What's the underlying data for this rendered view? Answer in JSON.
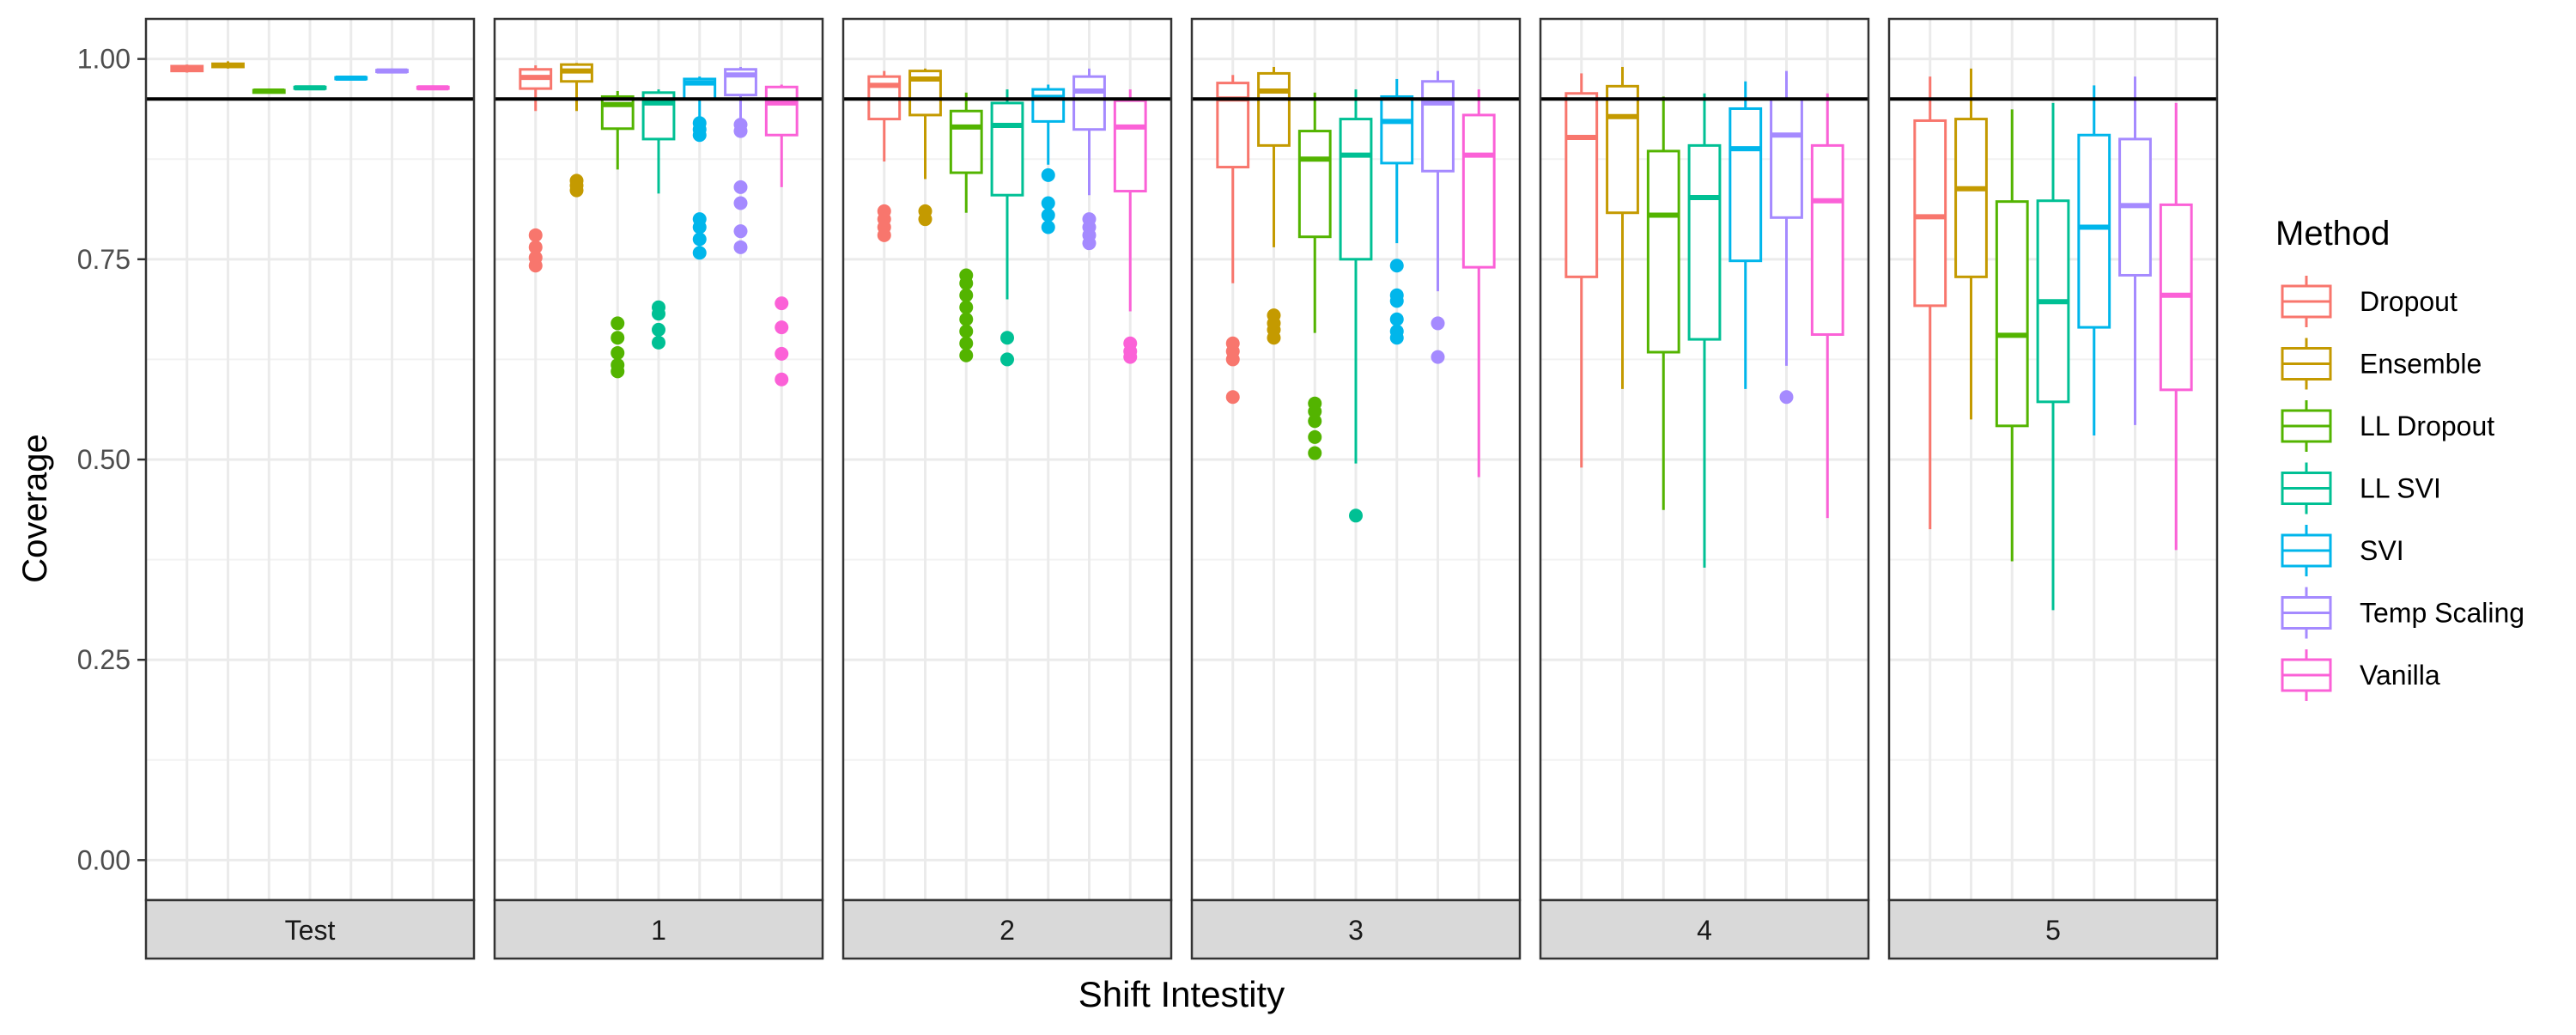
{
  "chart_data": {
    "type": "boxplot",
    "title": "",
    "xlabel": "Shift Intestity",
    "ylabel": "Coverage",
    "ylim": [
      -0.05,
      1.05
    ],
    "yticks": [
      0.0,
      0.25,
      0.5,
      0.75,
      1.0
    ],
    "ytick_labels": [
      "0.00",
      "0.25",
      "0.50",
      "0.75",
      "1.00"
    ],
    "reference_line": 0.95,
    "grid": true,
    "legend_position": "right",
    "legend_title": "Method",
    "facets": [
      "Test",
      "1",
      "2",
      "3",
      "4",
      "5"
    ],
    "series": [
      {
        "name": "Dropout",
        "color": "#F8766D"
      },
      {
        "name": "Ensemble",
        "color": "#C49A00"
      },
      {
        "name": "LL Dropout",
        "color": "#53B400"
      },
      {
        "name": "LL SVI",
        "color": "#00C094"
      },
      {
        "name": "SVI",
        "color": "#00B6EB"
      },
      {
        "name": "Temp Scaling",
        "color": "#A58AFF"
      },
      {
        "name": "Vanilla",
        "color": "#FB61D7"
      }
    ],
    "boxes": [
      [
        {
          "min": 0.983,
          "q1": 0.985,
          "median": 0.988,
          "q3": 0.991,
          "max": 0.993,
          "outliers": []
        },
        {
          "min": 0.988,
          "q1": 0.99,
          "median": 0.992,
          "q3": 0.994,
          "max": 0.997,
          "outliers": []
        },
        {
          "min": 0.957,
          "q1": 0.958,
          "median": 0.96,
          "q3": 0.961,
          "max": 0.962,
          "outliers": []
        },
        {
          "min": 0.962,
          "q1": 0.963,
          "median": 0.964,
          "q3": 0.965,
          "max": 0.966,
          "outliers": []
        },
        {
          "min": 0.973,
          "q1": 0.975,
          "median": 0.976,
          "q3": 0.977,
          "max": 0.979,
          "outliers": []
        },
        {
          "min": 0.982,
          "q1": 0.984,
          "median": 0.985,
          "q3": 0.986,
          "max": 0.988,
          "outliers": []
        },
        {
          "min": 0.962,
          "q1": 0.963,
          "median": 0.964,
          "q3": 0.965,
          "max": 0.967,
          "outliers": []
        }
      ],
      [
        {
          "min": 0.935,
          "q1": 0.963,
          "median": 0.977,
          "q3": 0.987,
          "max": 0.992,
          "outliers": [
            0.78,
            0.765,
            0.752,
            0.742
          ]
        },
        {
          "min": 0.935,
          "q1": 0.972,
          "median": 0.985,
          "q3": 0.993,
          "max": 0.995,
          "outliers": [
            0.848,
            0.842,
            0.836
          ]
        },
        {
          "min": 0.862,
          "q1": 0.913,
          "median": 0.943,
          "q3": 0.953,
          "max": 0.96,
          "outliers": [
            0.67,
            0.652,
            0.633,
            0.618,
            0.61
          ]
        },
        {
          "min": 0.832,
          "q1": 0.9,
          "median": 0.945,
          "q3": 0.958,
          "max": 0.962,
          "outliers": [
            0.69,
            0.682,
            0.662,
            0.646
          ]
        },
        {
          "min": 0.92,
          "q1": 0.95,
          "median": 0.97,
          "q3": 0.975,
          "max": 0.978,
          "outliers": [
            0.92,
            0.912,
            0.905,
            0.8,
            0.79,
            0.775,
            0.758
          ]
        },
        {
          "min": 0.92,
          "q1": 0.955,
          "median": 0.98,
          "q3": 0.987,
          "max": 0.99,
          "outliers": [
            0.918,
            0.91,
            0.84,
            0.82,
            0.785,
            0.765
          ]
        },
        {
          "min": 0.84,
          "q1": 0.905,
          "median": 0.945,
          "q3": 0.965,
          "max": 0.968,
          "outliers": [
            0.695,
            0.665,
            0.632,
            0.6
          ]
        }
      ],
      [
        {
          "min": 0.872,
          "q1": 0.925,
          "median": 0.967,
          "q3": 0.978,
          "max": 0.985,
          "outliers": [
            0.81,
            0.8,
            0.79,
            0.78
          ]
        },
        {
          "min": 0.85,
          "q1": 0.93,
          "median": 0.975,
          "q3": 0.985,
          "max": 0.988,
          "outliers": [
            0.81,
            0.8
          ]
        },
        {
          "min": 0.808,
          "q1": 0.858,
          "median": 0.915,
          "q3": 0.935,
          "max": 0.958,
          "outliers": [
            0.73,
            0.72,
            0.705,
            0.69,
            0.675,
            0.66,
            0.645,
            0.63
          ]
        },
        {
          "min": 0.7,
          "q1": 0.83,
          "median": 0.917,
          "q3": 0.945,
          "max": 0.962,
          "outliers": [
            0.652,
            0.625
          ]
        },
        {
          "min": 0.868,
          "q1": 0.922,
          "median": 0.952,
          "q3": 0.962,
          "max": 0.968,
          "outliers": [
            0.855,
            0.82,
            0.805,
            0.79
          ]
        },
        {
          "min": 0.83,
          "q1": 0.912,
          "median": 0.96,
          "q3": 0.978,
          "max": 0.988,
          "outliers": [
            0.8,
            0.79,
            0.78,
            0.77
          ]
        },
        {
          "min": 0.685,
          "q1": 0.835,
          "median": 0.915,
          "q3": 0.948,
          "max": 0.962,
          "outliers": [
            0.645,
            0.635,
            0.628
          ]
        }
      ],
      [
        {
          "min": 0.72,
          "q1": 0.865,
          "median": 0.95,
          "q3": 0.97,
          "max": 0.98,
          "outliers": [
            0.645,
            0.635,
            0.625,
            0.578
          ]
        },
        {
          "min": 0.765,
          "q1": 0.892,
          "median": 0.96,
          "q3": 0.982,
          "max": 0.99,
          "outliers": [
            0.68,
            0.67,
            0.662,
            0.652
          ]
        },
        {
          "min": 0.658,
          "q1": 0.778,
          "median": 0.875,
          "q3": 0.91,
          "max": 0.958,
          "outliers": [
            0.57,
            0.56,
            0.548,
            0.528,
            0.508
          ]
        },
        {
          "min": 0.495,
          "q1": 0.75,
          "median": 0.88,
          "q3": 0.925,
          "max": 0.962,
          "outliers": [
            0.43
          ]
        },
        {
          "min": 0.77,
          "q1": 0.87,
          "median": 0.922,
          "q3": 0.953,
          "max": 0.975,
          "outliers": [
            0.742,
            0.705,
            0.698,
            0.675,
            0.66,
            0.652
          ]
        },
        {
          "min": 0.71,
          "q1": 0.86,
          "median": 0.945,
          "q3": 0.972,
          "max": 0.985,
          "outliers": [
            0.67,
            0.628
          ]
        },
        {
          "min": 0.478,
          "q1": 0.74,
          "median": 0.88,
          "q3": 0.93,
          "max": 0.962,
          "outliers": []
        }
      ],
      [
        {
          "min": 0.49,
          "q1": 0.728,
          "median": 0.902,
          "q3": 0.957,
          "max": 0.982,
          "outliers": []
        },
        {
          "min": 0.588,
          "q1": 0.808,
          "median": 0.928,
          "q3": 0.966,
          "max": 0.99,
          "outliers": []
        },
        {
          "min": 0.437,
          "q1": 0.634,
          "median": 0.805,
          "q3": 0.885,
          "max": 0.953,
          "outliers": []
        },
        {
          "min": 0.365,
          "q1": 0.65,
          "median": 0.827,
          "q3": 0.892,
          "max": 0.957,
          "outliers": []
        },
        {
          "min": 0.588,
          "q1": 0.748,
          "median": 0.888,
          "q3": 0.938,
          "max": 0.972,
          "outliers": []
        },
        {
          "min": 0.617,
          "q1": 0.802,
          "median": 0.905,
          "q3": 0.95,
          "max": 0.985,
          "outliers": [
            0.578
          ]
        },
        {
          "min": 0.427,
          "q1": 0.656,
          "median": 0.823,
          "q3": 0.892,
          "max": 0.957,
          "outliers": []
        }
      ],
      [
        {
          "min": 0.413,
          "q1": 0.692,
          "median": 0.803,
          "q3": 0.923,
          "max": 0.978,
          "outliers": []
        },
        {
          "min": 0.55,
          "q1": 0.728,
          "median": 0.838,
          "q3": 0.925,
          "max": 0.988,
          "outliers": []
        },
        {
          "min": 0.373,
          "q1": 0.542,
          "median": 0.655,
          "q3": 0.822,
          "max": 0.937,
          "outliers": []
        },
        {
          "min": 0.312,
          "q1": 0.572,
          "median": 0.697,
          "q3": 0.823,
          "max": 0.945,
          "outliers": []
        },
        {
          "min": 0.53,
          "q1": 0.665,
          "median": 0.79,
          "q3": 0.905,
          "max": 0.967,
          "outliers": []
        },
        {
          "min": 0.543,
          "q1": 0.73,
          "median": 0.817,
          "q3": 0.9,
          "max": 0.978,
          "outliers": []
        },
        {
          "min": 0.387,
          "q1": 0.587,
          "median": 0.705,
          "q3": 0.818,
          "max": 0.945,
          "outliers": []
        }
      ]
    ]
  }
}
